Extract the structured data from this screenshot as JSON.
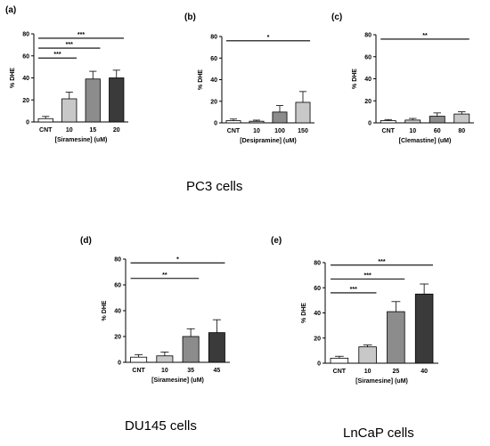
{
  "captions": [
    "PC3 cells",
    "DU145 cells",
    "LnCaP cells"
  ],
  "chart_data": [
    {
      "type": "bar",
      "panel": "(a)",
      "categories": [
        "CNT",
        "10",
        "15",
        "20"
      ],
      "values": [
        3,
        21,
        39,
        40
      ],
      "errors": [
        2,
        6,
        7,
        7
      ],
      "ylabel": "% DHE",
      "xlabel": "[Siramesine] (uM)",
      "ylim": [
        0,
        80
      ],
      "yticks": [
        0,
        20,
        40,
        60,
        80
      ],
      "fills": [
        "#ffffff",
        "#c8c8c8",
        "#8c8c8c",
        "#3a3a3a"
      ],
      "significance": [
        {
          "label": "***",
          "from": 0,
          "to": 1,
          "y": 58
        },
        {
          "label": "***",
          "from": 0,
          "to": 2,
          "y": 67
        },
        {
          "label": "***",
          "from": 0,
          "to": 3,
          "y": 76
        }
      ]
    },
    {
      "type": "bar",
      "panel": "(b)",
      "categories": [
        "CNT",
        "10",
        "100",
        "150"
      ],
      "values": [
        2,
        1.5,
        10,
        19
      ],
      "errors": [
        1.5,
        1,
        6,
        10
      ],
      "ylabel": "% DHE",
      "xlabel": "[Desipramine] (uM)",
      "ylim": [
        0,
        80
      ],
      "yticks": [
        0,
        20,
        40,
        60,
        80
      ],
      "fills": [
        "#ffffff",
        "#c8c8c8",
        "#8c8c8c",
        "#c8c8c8"
      ],
      "significance": [
        {
          "label": "*",
          "from": 0,
          "to": 3,
          "y": 76
        }
      ]
    },
    {
      "type": "bar",
      "panel": "(c)",
      "categories": [
        "CNT",
        "10",
        "60",
        "80"
      ],
      "values": [
        2,
        2.5,
        6,
        8
      ],
      "errors": [
        1,
        1.5,
        3,
        2
      ],
      "ylabel": "% DHE",
      "xlabel": "[Clemastine] (uM)",
      "ylim": [
        0,
        80
      ],
      "yticks": [
        0,
        20,
        40,
        60,
        80
      ],
      "fills": [
        "#ffffff",
        "#c8c8c8",
        "#8c8c8c",
        "#c8c8c8"
      ],
      "significance": [
        {
          "label": "**",
          "from": 0,
          "to": 3,
          "y": 76
        }
      ]
    },
    {
      "type": "bar",
      "panel": "(d)",
      "categories": [
        "CNT",
        "10",
        "35",
        "45"
      ],
      "values": [
        4,
        5,
        20,
        23
      ],
      "errors": [
        2,
        3,
        6,
        10
      ],
      "ylabel": "% DHE",
      "xlabel": "[Siramesine] (uM)",
      "ylim": [
        0,
        80
      ],
      "yticks": [
        0,
        20,
        40,
        60,
        80
      ],
      "fills": [
        "#ffffff",
        "#c8c8c8",
        "#8c8c8c",
        "#3a3a3a"
      ],
      "significance": [
        {
          "label": "**",
          "from": 0,
          "to": 2,
          "y": 65
        },
        {
          "label": "*",
          "from": 0,
          "to": 3,
          "y": 77
        }
      ]
    },
    {
      "type": "bar",
      "panel": "(e)",
      "categories": [
        "CNT",
        "10",
        "25",
        "40"
      ],
      "values": [
        4,
        13,
        41,
        55
      ],
      "errors": [
        1.5,
        1.5,
        8,
        8
      ],
      "ylabel": "% DHE",
      "xlabel": "[Siramesine] (uM)",
      "ylim": [
        0,
        80
      ],
      "yticks": [
        0,
        20,
        40,
        60,
        80
      ],
      "fills": [
        "#ffffff",
        "#c8c8c8",
        "#8c8c8c",
        "#3a3a3a"
      ],
      "significance": [
        {
          "label": "***",
          "from": 0,
          "to": 1,
          "y": 56
        },
        {
          "label": "***",
          "from": 0,
          "to": 2,
          "y": 67
        },
        {
          "label": "***",
          "from": 0,
          "to": 3,
          "y": 78
        }
      ]
    }
  ]
}
